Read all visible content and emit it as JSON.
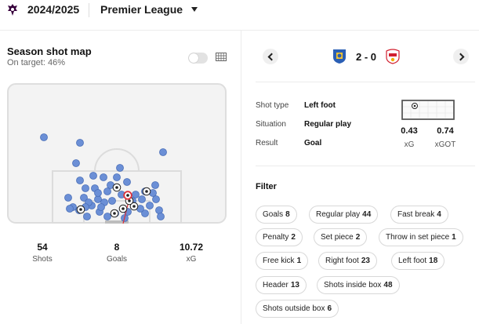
{
  "header": {
    "season": "2024/2025",
    "league": "Premier League"
  },
  "shotmap": {
    "title": "Season shot map",
    "subtitle": "On target: 46%",
    "stats": [
      {
        "value": "54",
        "label": "Shots"
      },
      {
        "value": "8",
        "label": "Goals"
      },
      {
        "value": "10.72",
        "label": "xG"
      }
    ]
  },
  "match": {
    "score": "2 - 0",
    "home_crest": "leicester-crest",
    "away_crest": "southampton-crest"
  },
  "shot_detail": {
    "rows": [
      {
        "label": "Shot type",
        "value": "Left foot"
      },
      {
        "label": "Situation",
        "value": "Regular play"
      },
      {
        "label": "Result",
        "value": "Goal"
      }
    ],
    "xg": "0.43",
    "xg_label": "xG",
    "xgot": "0.74",
    "xgot_label": "xGOT"
  },
  "filter": {
    "title": "Filter",
    "chips": [
      {
        "label": "Goals",
        "count": "8"
      },
      {
        "label": "Regular play",
        "count": "44"
      },
      {
        "label": "Fast break",
        "count": "4"
      },
      {
        "label": "Penalty",
        "count": "2"
      },
      {
        "label": "Set piece",
        "count": "2"
      },
      {
        "label": "Throw in set piece",
        "count": "1"
      },
      {
        "label": "Free kick",
        "count": "1"
      },
      {
        "label": "Right foot",
        "count": "23"
      },
      {
        "label": "Left foot",
        "count": "18"
      },
      {
        "label": "Header",
        "count": "13"
      },
      {
        "label": "Shots inside box",
        "count": "48"
      },
      {
        "label": "Shots outside box",
        "count": "6"
      }
    ]
  },
  "colors": {
    "shot_blue": "#6b8fd6",
    "selected": "#e0323a",
    "accent": "#37003c"
  }
}
